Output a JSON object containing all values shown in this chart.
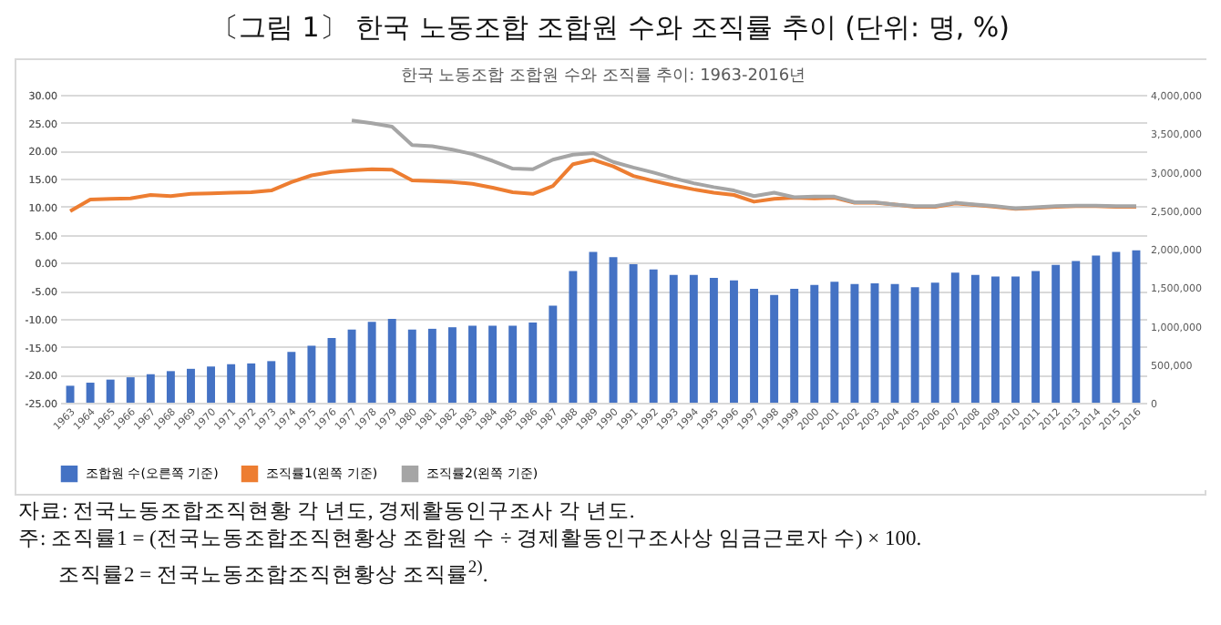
{
  "chart_data": {
    "type": "bar",
    "title": "〔그림 1〕 한국 노동조합 조합원 수와 조직률 추이 (단위: 명, %)",
    "subtitle": "한국 노동조합 조합원 수와 조직률 추이: 1963-2016년",
    "categories": [
      "1963",
      "1964",
      "1965",
      "1966",
      "1967",
      "1968",
      "1969",
      "1970",
      "1971",
      "1972",
      "1973",
      "1974",
      "1975",
      "1976",
      "1977",
      "1978",
      "1979",
      "1980",
      "1981",
      "1982",
      "1983",
      "1984",
      "1985",
      "1986",
      "1987",
      "1988",
      "1989",
      "1990",
      "1991",
      "1992",
      "1993",
      "1994",
      "1995",
      "1996",
      "1997",
      "1998",
      "1999",
      "2000",
      "2001",
      "2002",
      "2003",
      "2004",
      "2005",
      "2006",
      "2007",
      "2008",
      "2009",
      "2010",
      "2011",
      "2012",
      "2013",
      "2014",
      "2015",
      "2016"
    ],
    "series": [
      {
        "name": "조합원 수(오른쪽 기준)",
        "axis": "y2",
        "color": "#4472c4",
        "values": [
          220000,
          260000,
          300000,
          330000,
          370000,
          410000,
          440000,
          470000,
          500000,
          510000,
          540000,
          660000,
          740000,
          840000,
          950000,
          1050000,
          1090000,
          950000,
          960000,
          980000,
          1000000,
          1000000,
          1000000,
          1040000,
          1260000,
          1710000,
          1960000,
          1890000,
          1800000,
          1730000,
          1660000,
          1660000,
          1620000,
          1590000,
          1480000,
          1400000,
          1480000,
          1530000,
          1570000,
          1540000,
          1550000,
          1540000,
          1500000,
          1560000,
          1690000,
          1660000,
          1640000,
          1640000,
          1710000,
          1790000,
          1840000,
          1910000,
          1960000,
          1980000
        ]
      },
      {
        "name": "조직률1(왼쪽 기준)",
        "type": "line",
        "color": "#ed7d31",
        "values": [
          9.2,
          11.3,
          11.4,
          11.5,
          12.1,
          11.9,
          12.3,
          12.4,
          12.5,
          12.6,
          12.9,
          14.4,
          15.6,
          16.2,
          16.5,
          16.7,
          16.6,
          14.7,
          14.6,
          14.4,
          14.1,
          13.4,
          12.6,
          12.3,
          13.7,
          17.6,
          18.4,
          17.2,
          15.5,
          14.6,
          13.8,
          13.1,
          12.5,
          12.1,
          10.9,
          11.4,
          11.6,
          11.5,
          11.6,
          10.7,
          10.7,
          10.4,
          10.0,
          10.0,
          10.6,
          10.3,
          10.0,
          9.6,
          9.8,
          10.0,
          10.1,
          10.1,
          10.0,
          10.0
        ]
      },
      {
        "name": "조직률2(왼쪽 기준)",
        "type": "line",
        "color": "#a5a5a5",
        "values": [
          null,
          null,
          null,
          null,
          null,
          null,
          null,
          null,
          null,
          null,
          null,
          null,
          null,
          null,
          25.4,
          24.9,
          24.3,
          21.0,
          20.8,
          20.2,
          19.4,
          18.2,
          16.8,
          16.7,
          18.4,
          19.3,
          19.6,
          18.0,
          17.0,
          16.1,
          15.1,
          14.2,
          13.5,
          12.9,
          11.9,
          12.5,
          11.7,
          11.8,
          11.8,
          10.8,
          10.8,
          10.4,
          10.1,
          10.1,
          10.7,
          10.4,
          10.1,
          9.7,
          9.9,
          10.1,
          10.2,
          10.2,
          10.1,
          10.1
        ]
      }
    ],
    "ylim": [
      -25,
      30
    ],
    "yticks": [
      {
        "value": -25,
        "label": "-25.00"
      },
      {
        "value": -20,
        "label": "-20.00"
      },
      {
        "value": -15,
        "label": "-15.00"
      },
      {
        "value": -10,
        "label": "-10.00"
      },
      {
        "value": -5,
        "label": "-5.00"
      },
      {
        "value": 0,
        "label": "0.00"
      },
      {
        "value": 5,
        "label": "5.00"
      },
      {
        "value": 10,
        "label": "10.00"
      },
      {
        "value": 15,
        "label": "15.00"
      },
      {
        "value": 20,
        "label": "20.00"
      },
      {
        "value": 25,
        "label": "25.00"
      },
      {
        "value": 30,
        "label": "30.00"
      }
    ],
    "y2lim": [
      0,
      4000000
    ],
    "y2ticks": [
      0,
      {
        "value": 500000,
        "label": "500,000"
      },
      {
        "value": 1000000,
        "label": "1,000,000"
      },
      {
        "value": 1500000,
        "label": "1,500,000"
      },
      {
        "value": 2000000,
        "label": "2,000,000"
      },
      {
        "value": 2500000,
        "label": "2,500,000"
      },
      {
        "value": 3000000,
        "label": "3,000,000"
      },
      {
        "value": 3500000,
        "label": "3,500,000"
      },
      {
        "value": 4000000,
        "label": "4,000,000"
      }
    ],
    "grid": "y",
    "legend": "bottom",
    "annotations": [
      "자료: 전국노동조합조직현황 각 년도, 경제활동인구조사 각 년도.",
      "주: 조직률1 = (전국노동조합조직현황상 조합원 수 ÷ 경제활동인구조사상 임금근로자 수) × 100.",
      "조직률2 = 전국노동조합조직현황상 조직률$^{2)}$."
    ]
  }
}
